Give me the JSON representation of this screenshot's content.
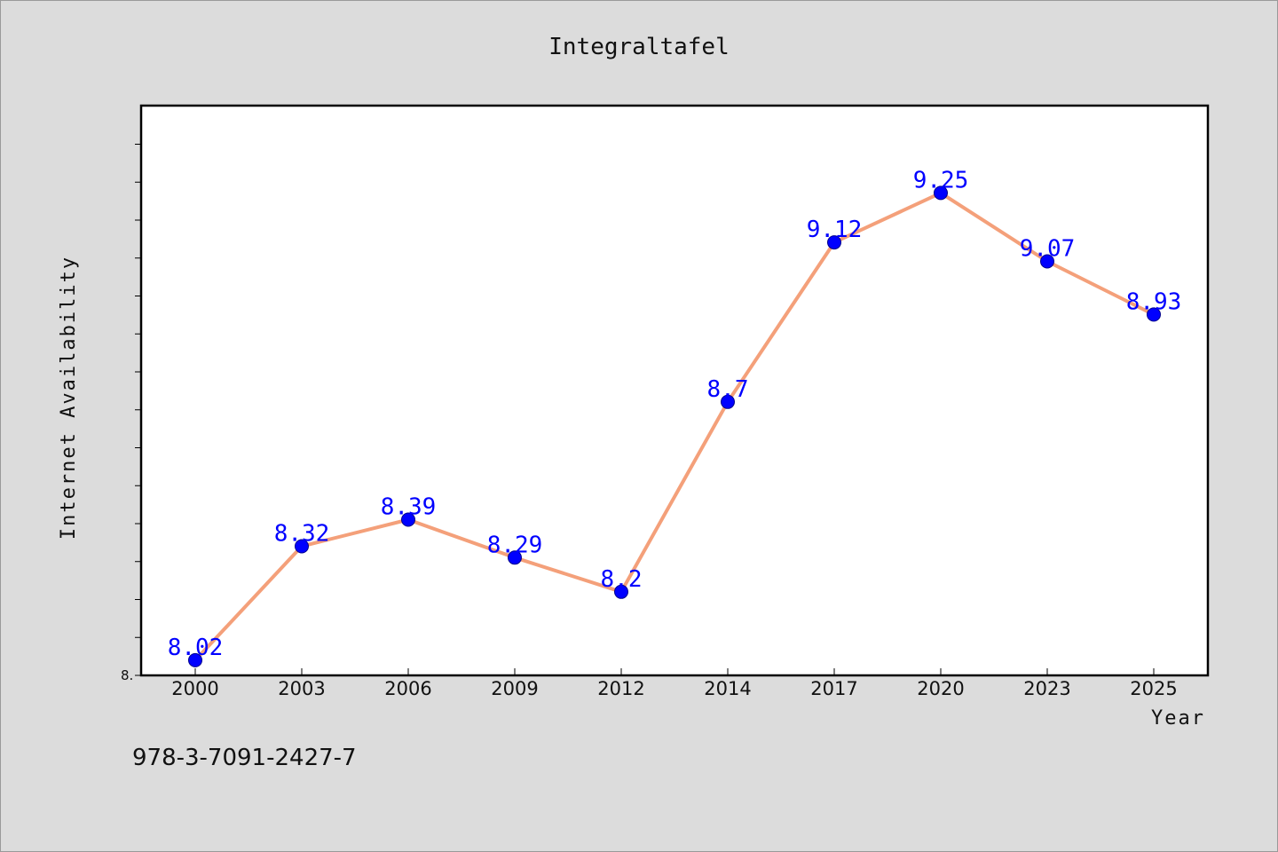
{
  "chart_data": {
    "type": "line",
    "title": "Integraltafel",
    "xlabel": "Year",
    "ylabel": "Internet Availability",
    "categories": [
      "2000",
      "2003",
      "2006",
      "2009",
      "2012",
      "2014",
      "2017",
      "2020",
      "2023",
      "2025"
    ],
    "series": [
      {
        "values": [
          8.02,
          8.32,
          8.39,
          8.29,
          8.2,
          8.7,
          9.12,
          9.25,
          9.07,
          8.93
        ],
        "labels": [
          "8.02",
          "8.32",
          "8.39",
          "8.29",
          "8.2",
          "8.7",
          "9.12",
          "9.25",
          "9.07",
          "8.93"
        ],
        "line_color": "#f4a07a",
        "marker_color": "#0000ff"
      }
    ],
    "ylim": [
      7.98,
      9.48
    ],
    "y_tick_label": "8.",
    "grid": false,
    "legend": "none"
  },
  "footer": {
    "isbn": "978-3-7091-2427-7"
  }
}
